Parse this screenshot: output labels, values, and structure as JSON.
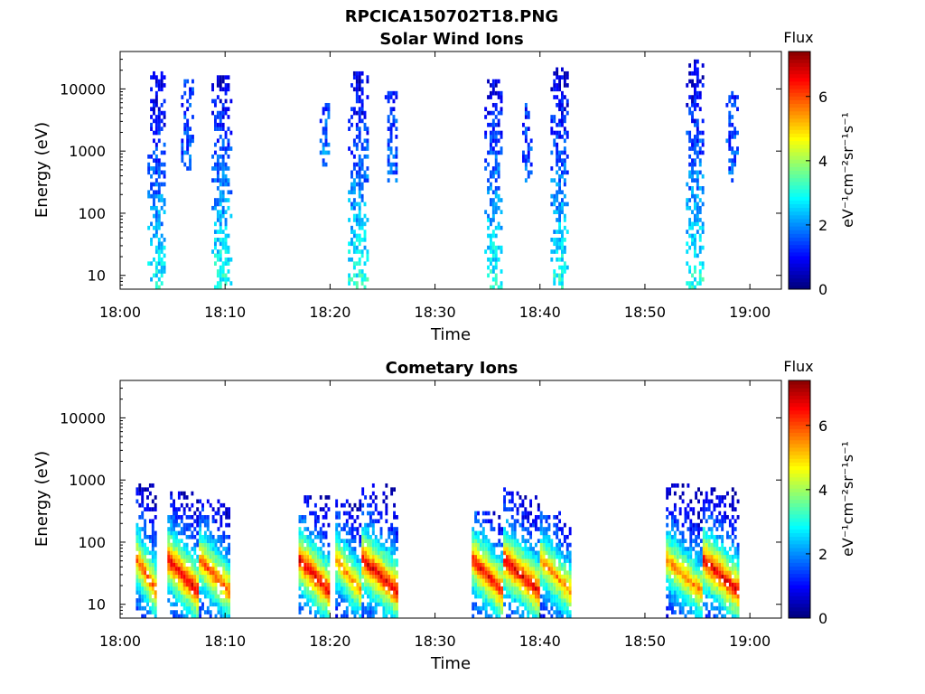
{
  "figure_title": "RPCICA150702T18.PNG",
  "chart_data": [
    {
      "type": "heatmap",
      "title": "Solar Wind Ions",
      "xlabel": "Time",
      "ylabel": "Energy (eV)",
      "y_scale": "log",
      "xlim": [
        "18:00",
        "19:03"
      ],
      "ylim": [
        6,
        40000
      ],
      "x_tick_labels": [
        "18:00",
        "18:10",
        "18:20",
        "18:30",
        "18:40",
        "18:50",
        "19:00"
      ],
      "x_tick_minutes": [
        0,
        10,
        20,
        30,
        40,
        50,
        60
      ],
      "y_tick_labels": [
        "10",
        "100",
        "1000",
        "10000"
      ],
      "y_tick_values": [
        10,
        100,
        1000,
        10000
      ],
      "colorbar": {
        "title": "Flux",
        "label": "eV⁻¹cm⁻²sr⁻¹s⁻¹",
        "ticks": [
          "0",
          "2",
          "4",
          "6"
        ],
        "tick_values": [
          0,
          2,
          4,
          6
        ],
        "range": [
          0,
          7.4
        ],
        "colormap": "jet"
      },
      "grid": false,
      "bursts": [
        {
          "start": "18:02.6",
          "end": "18:04.3",
          "emin": 6,
          "emax": 20000,
          "flux_low": 2.8,
          "flux_high": 0.5
        },
        {
          "start": "18:05.8",
          "end": "18:07.0",
          "emin": 500,
          "emax": 14000,
          "flux_low": 1.6,
          "flux_high": 1.2
        },
        {
          "start": "18:08.7",
          "end": "18:10.5",
          "emin": 6,
          "emax": 16000,
          "flux_low": 3.0,
          "flux_high": 0.6
        },
        {
          "start": "18:19.0",
          "end": "18:20.0",
          "emin": 500,
          "emax": 6000,
          "flux_low": 1.8,
          "flux_high": 1.5
        },
        {
          "start": "18:21.7",
          "end": "18:23.6",
          "emin": 6,
          "emax": 20000,
          "flux_low": 3.0,
          "flux_high": 0.5
        },
        {
          "start": "18:25.2",
          "end": "18:26.3",
          "emin": 300,
          "emax": 9000,
          "flux_low": 1.6,
          "flux_high": 1.2
        },
        {
          "start": "18:34.7",
          "end": "18:36.4",
          "emin": 6,
          "emax": 15000,
          "flux_low": 3.0,
          "flux_high": 0.6
        },
        {
          "start": "18:38.3",
          "end": "18:39.1",
          "emin": 300,
          "emax": 6000,
          "flux_low": 1.6,
          "flux_high": 1.2
        },
        {
          "start": "18:41.0",
          "end": "18:42.7",
          "emin": 6,
          "emax": 22000,
          "flux_low": 3.0,
          "flux_high": 0.5
        },
        {
          "start": "18:53.9",
          "end": "18:55.5",
          "emin": 6,
          "emax": 30000,
          "flux_low": 3.0,
          "flux_high": 0.5
        },
        {
          "start": "18:57.7",
          "end": "18:58.8",
          "emin": 300,
          "emax": 9000,
          "flux_low": 1.6,
          "flux_high": 1.2
        }
      ]
    },
    {
      "type": "heatmap",
      "title": "Cometary Ions",
      "xlabel": "Time",
      "ylabel": "Energy (eV)",
      "y_scale": "log",
      "xlim": [
        "18:00",
        "19:03"
      ],
      "ylim": [
        6,
        40000
      ],
      "x_tick_labels": [
        "18:00",
        "18:10",
        "18:20",
        "18:30",
        "18:40",
        "18:50",
        "19:00"
      ],
      "x_tick_minutes": [
        0,
        10,
        20,
        30,
        40,
        50,
        60
      ],
      "y_tick_labels": [
        "10",
        "100",
        "1000",
        "10000"
      ],
      "y_tick_values": [
        10,
        100,
        1000,
        10000
      ],
      "colorbar": {
        "title": "Flux",
        "label": "eV⁻¹cm⁻²sr⁻¹s⁻¹",
        "ticks": [
          "0",
          "2",
          "4",
          "6"
        ],
        "tick_values": [
          0,
          2,
          4,
          6
        ],
        "range": [
          0,
          7.4
        ],
        "colormap": "jet"
      },
      "grid": false,
      "bursts": [
        {
          "start": "18:01.5",
          "end": "18:03.5",
          "emin": 6,
          "emax": 900,
          "peak_energy": 15,
          "peak_flux": 6.0
        },
        {
          "start": "18:04.5",
          "end": "18:07.5",
          "emin": 6,
          "emax": 700,
          "peak_energy": 15,
          "peak_flux": 6.8
        },
        {
          "start": "18:07.5",
          "end": "18:10.5",
          "emin": 6,
          "emax": 500,
          "peak_energy": 15,
          "peak_flux": 6.0
        },
        {
          "start": "18:17.0",
          "end": "18:20.0",
          "emin": 6,
          "emax": 600,
          "peak_energy": 15,
          "peak_flux": 6.8
        },
        {
          "start": "18:20.5",
          "end": "18:23.0",
          "emin": 6,
          "emax": 500,
          "peak_energy": 15,
          "peak_flux": 5.6
        },
        {
          "start": "18:23.0",
          "end": "18:26.5",
          "emin": 6,
          "emax": 900,
          "peak_energy": 15,
          "peak_flux": 6.8
        },
        {
          "start": "18:33.5",
          "end": "18:36.5",
          "emin": 6,
          "emax": 300,
          "peak_energy": 15,
          "peak_flux": 6.6
        },
        {
          "start": "18:36.5",
          "end": "18:40.0",
          "emin": 6,
          "emax": 800,
          "peak_energy": 15,
          "peak_flux": 6.8
        },
        {
          "start": "18:40.0",
          "end": "18:43.0",
          "emin": 6,
          "emax": 300,
          "peak_energy": 15,
          "peak_flux": 5.6
        },
        {
          "start": "18:52.0",
          "end": "18:55.5",
          "emin": 6,
          "emax": 900,
          "peak_energy": 15,
          "peak_flux": 5.6
        },
        {
          "start": "18:55.5",
          "end": "18:59.0",
          "emin": 6,
          "emax": 800,
          "peak_energy": 15,
          "peak_flux": 6.8
        }
      ]
    }
  ]
}
